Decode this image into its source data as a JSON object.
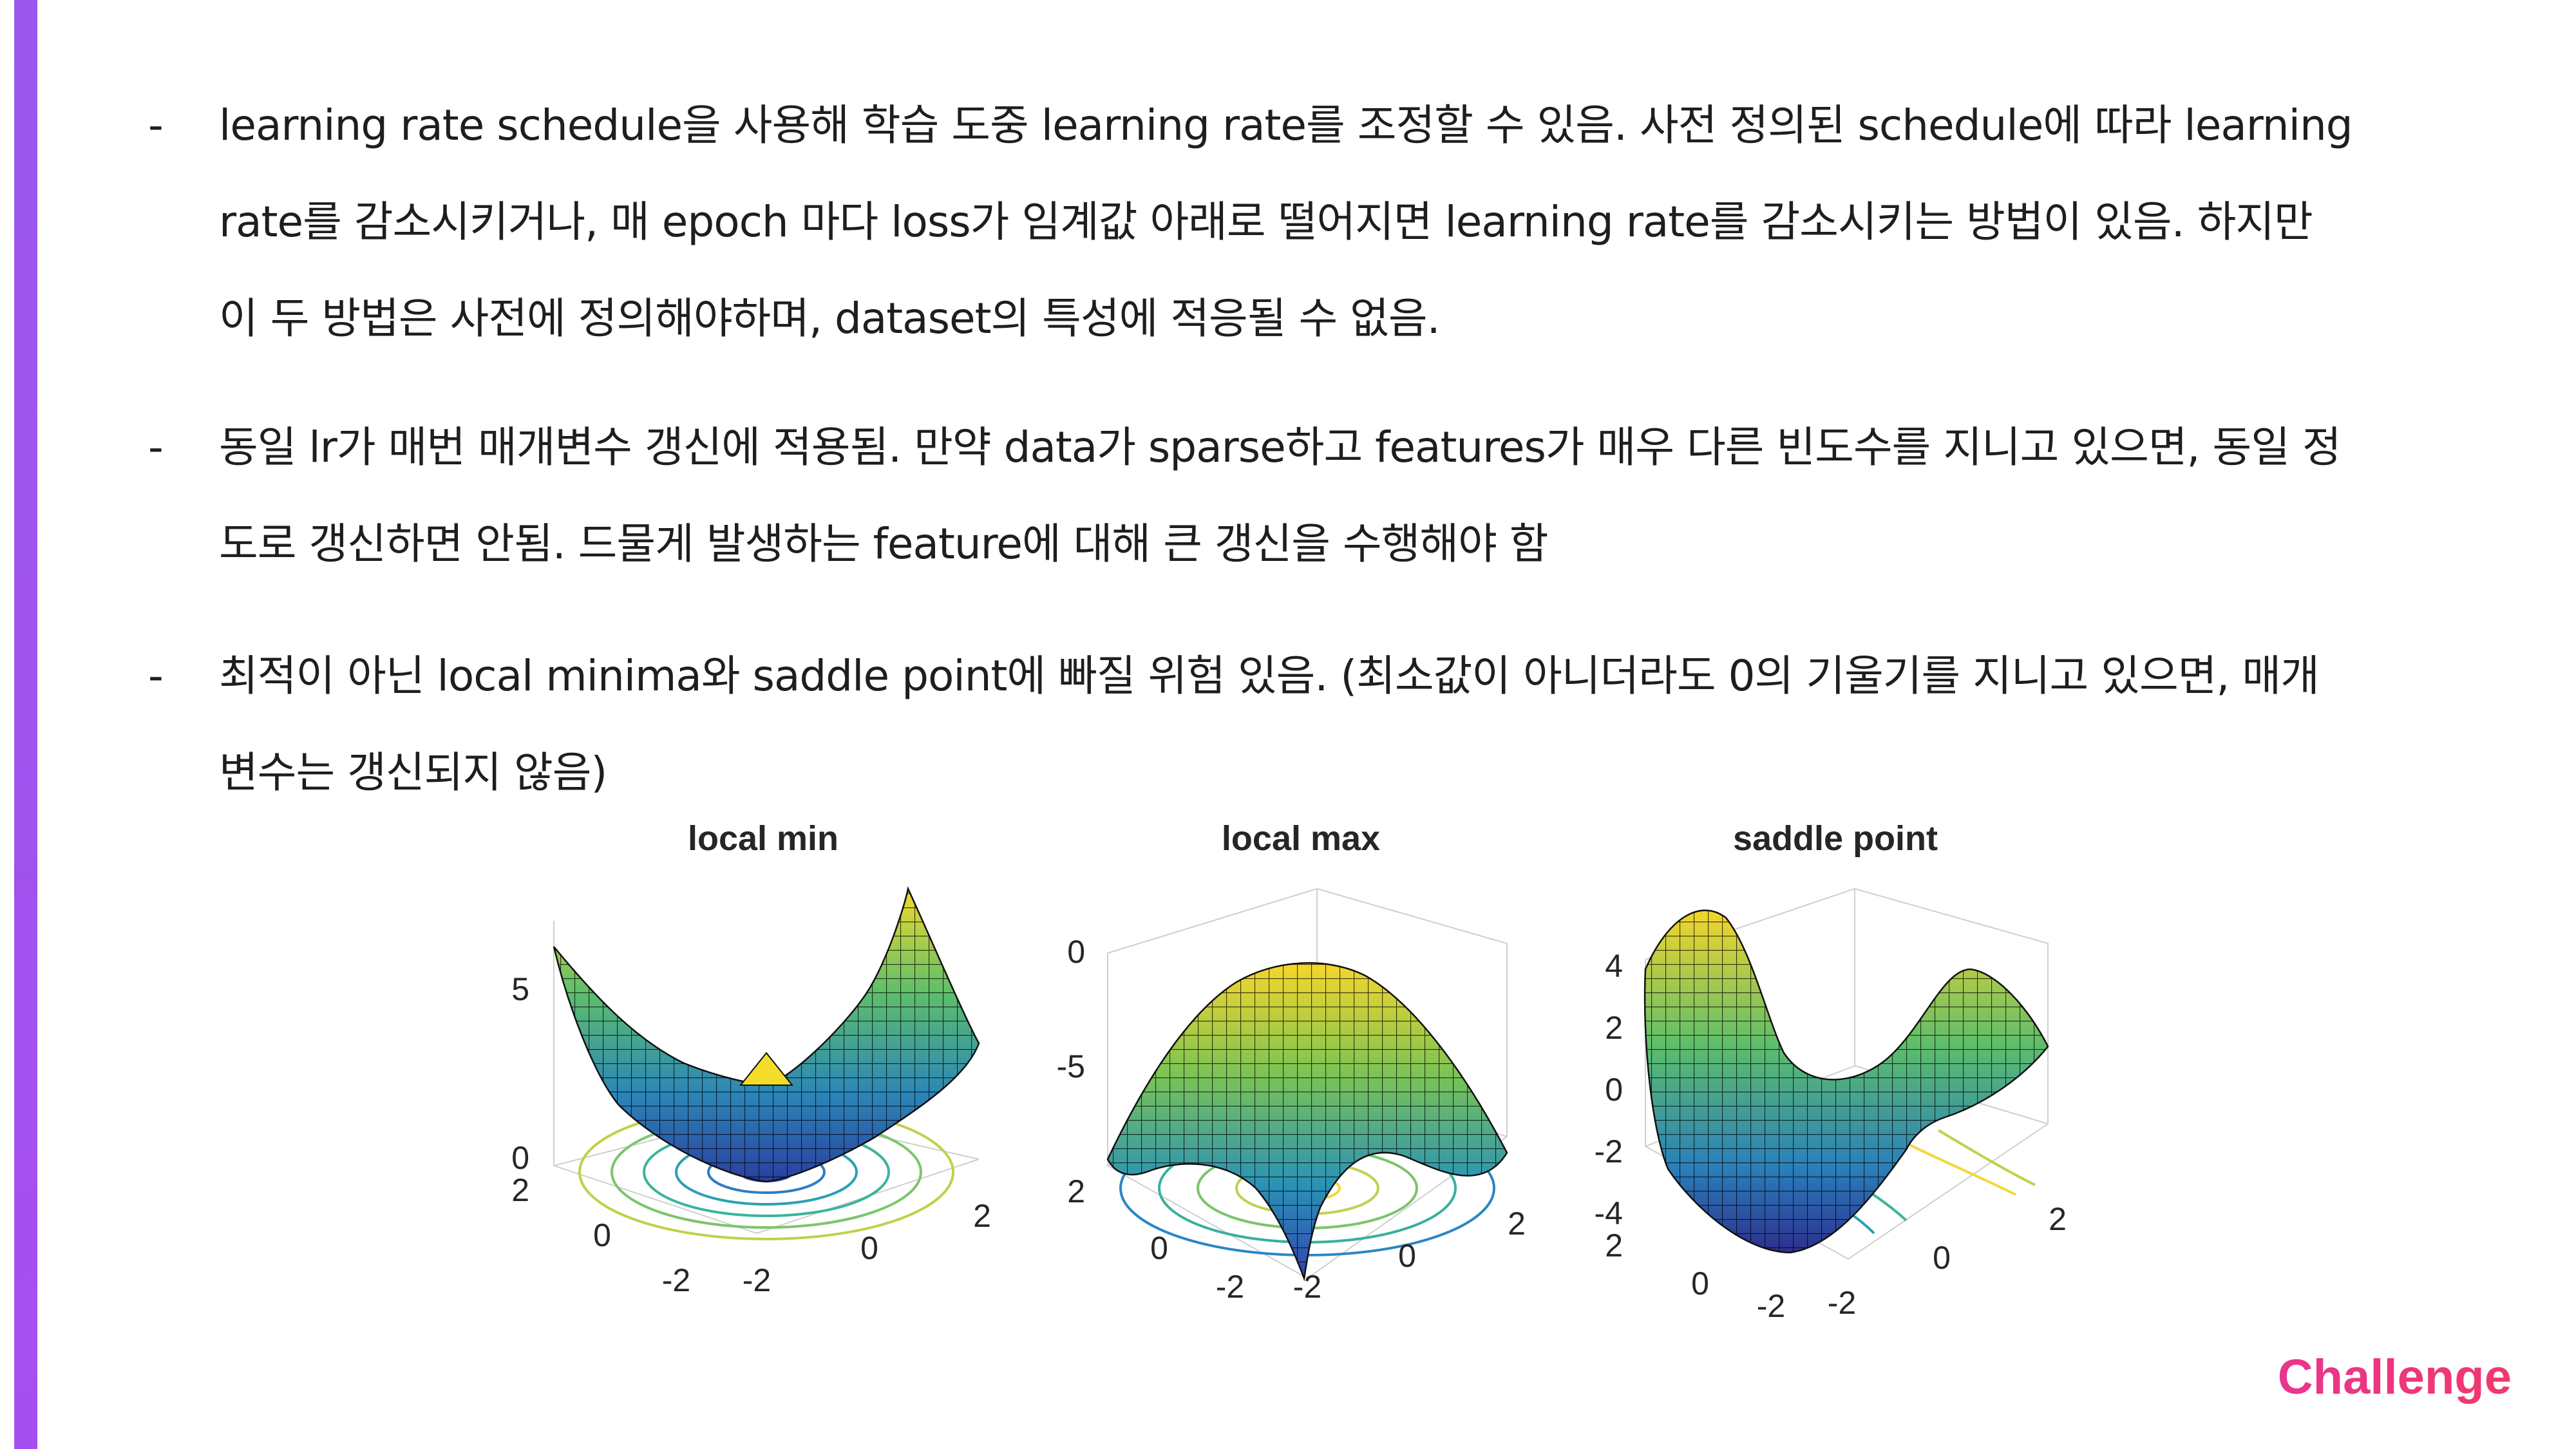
{
  "bullets": [
    {
      "dash": "-",
      "lines": [
        "learning rate schedule을 사용해 학습 도중 learning rate를 조정할 수 있음. 사전 정의된 schedule에 따라 learning",
        "rate를 감소시키거나, 매 epoch 마다 loss가 임계값 아래로 떨어지면 learning rate를 감소시키는 방법이 있음. 하지만",
        "이 두 방법은 사전에 정의해야하며, dataset의 특성에 적응될 수 없음."
      ]
    },
    {
      "dash": "-",
      "lines": [
        "동일 lr가 매번 매개변수 갱신에 적용됨. 만약 data가 sparse하고 features가 매우 다른 빈도수를 지니고 있으면, 동일 정",
        "도로 갱신하면 안됨. 드물게 발생하는 feature에 대해 큰 갱신을 수행해야 함"
      ]
    },
    {
      "dash": "-",
      "lines": [
        "최적이 아닌 local minima와 saddle point에 빠질 위험 있음. (최소값이 아니더라도 0의 기울기를 지니고 있으면, 매개",
        "변수는 갱신되지 않음)"
      ]
    }
  ],
  "figure": {
    "plots": [
      {
        "title": "local min",
        "zticks": [
          "0",
          "5"
        ],
        "yticks": [
          "2",
          "0",
          "-2"
        ],
        "xticks": [
          "-2",
          "0",
          "2"
        ]
      },
      {
        "title": "local max",
        "zticks": [
          "0",
          "-5"
        ],
        "yticks": [
          "2",
          "0",
          "-2"
        ],
        "xticks": [
          "-2",
          "0",
          "2"
        ]
      },
      {
        "title": "saddle point",
        "zticks": [
          "4",
          "2",
          "0",
          "-2",
          "-4"
        ],
        "yticks": [
          "2",
          "0",
          "-2"
        ],
        "xticks": [
          "-2",
          "0",
          "2"
        ]
      }
    ]
  },
  "brand": {
    "label": "Challenge"
  },
  "colors": {
    "accent": "#9a58ec",
    "brand": "#ec3679"
  }
}
